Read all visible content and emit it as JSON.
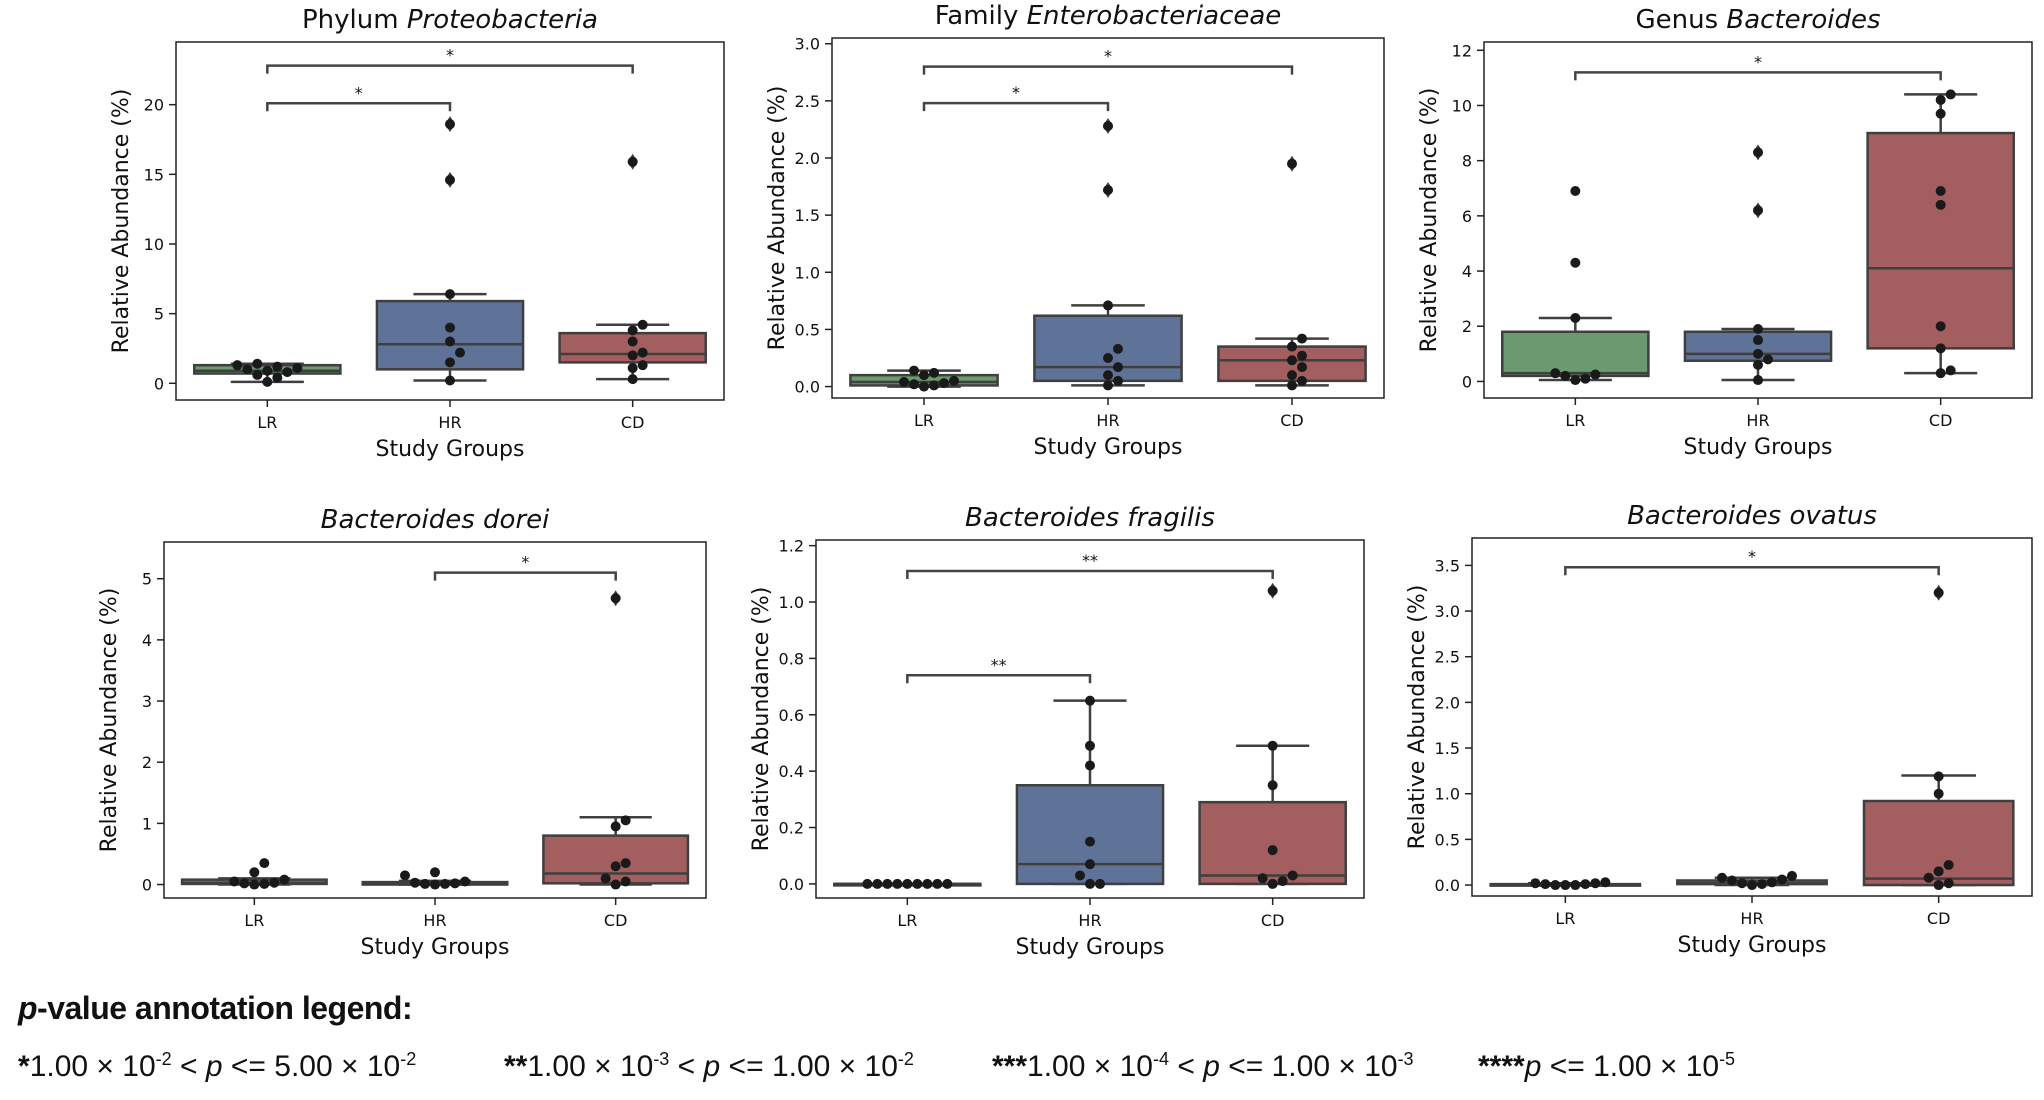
{
  "chart_data": [
    {
      "type": "box",
      "title": "Phylum Proteobacteria",
      "title_parts": [
        {
          "text": "Phylum ",
          "italic": false
        },
        {
          "text": "Proteobacteria",
          "italic": true
        }
      ],
      "xlabel": "Study Groups",
      "ylabel": "Relative Abundance (%)",
      "ylim": [
        -1.2,
        24.5
      ],
      "yticks": [
        0,
        5,
        10,
        15,
        20
      ],
      "categories": [
        "LR",
        "HR",
        "CD"
      ],
      "colors": [
        "#6a9a6e",
        "#5f7399",
        "#a35e5f"
      ],
      "boxes": [
        {
          "q1": 0.7,
          "median": 0.9,
          "q3": 1.3,
          "whislo": 0.1,
          "whishi": 1.4,
          "fliers": []
        },
        {
          "q1": 1.0,
          "median": 2.8,
          "q3": 5.9,
          "whislo": 0.2,
          "whishi": 6.4,
          "fliers": [
            14.6,
            18.6
          ]
        },
        {
          "q1": 1.5,
          "median": 2.1,
          "q3": 3.6,
          "whislo": 0.3,
          "whishi": 4.2,
          "fliers": [
            15.9
          ]
        }
      ],
      "points": [
        [
          0.1,
          0.4,
          0.6,
          0.8,
          0.9,
          1.0,
          1.1,
          1.2,
          1.3,
          1.4
        ],
        [
          0.2,
          1.5,
          2.2,
          3.0,
          4.0,
          6.4,
          14.6,
          18.6
        ],
        [
          0.3,
          1.1,
          1.3,
          2.0,
          2.2,
          3.0,
          3.8,
          4.2,
          15.9
        ]
      ],
      "annotations": [
        {
          "from": 0,
          "to": 1,
          "y": 20.1,
          "label": "*"
        },
        {
          "from": 0,
          "to": 2,
          "y": 22.8,
          "label": "*"
        }
      ]
    },
    {
      "type": "box",
      "title": "Family Enterobacteriaceae",
      "title_parts": [
        {
          "text": "Family ",
          "italic": false
        },
        {
          "text": "Enterobacteriaceae",
          "italic": true
        }
      ],
      "xlabel": "Study Groups",
      "ylabel": "Relative Abundance (%)",
      "ylim": [
        -0.1,
        3.05
      ],
      "yticks": [
        0.0,
        0.5,
        1.0,
        1.5,
        2.0,
        2.5,
        3.0
      ],
      "categories": [
        "LR",
        "HR",
        "CD"
      ],
      "colors": [
        "#6a9a6e",
        "#5f7399",
        "#a35e5f"
      ],
      "boxes": [
        {
          "q1": 0.01,
          "median": 0.04,
          "q3": 0.1,
          "whislo": 0.0,
          "whishi": 0.14,
          "fliers": []
        },
        {
          "q1": 0.05,
          "median": 0.17,
          "q3": 0.62,
          "whislo": 0.01,
          "whishi": 0.71,
          "fliers": [
            1.72,
            2.28
          ]
        },
        {
          "q1": 0.05,
          "median": 0.23,
          "q3": 0.35,
          "whislo": 0.01,
          "whishi": 0.42,
          "fliers": [
            1.95
          ]
        }
      ],
      "points": [
        [
          0.0,
          0.01,
          0.02,
          0.03,
          0.04,
          0.05,
          0.1,
          0.12,
          0.14
        ],
        [
          0.01,
          0.05,
          0.1,
          0.17,
          0.25,
          0.33,
          0.71,
          1.72,
          2.28
        ],
        [
          0.01,
          0.05,
          0.1,
          0.17,
          0.23,
          0.27,
          0.35,
          0.42,
          1.95
        ]
      ],
      "annotations": [
        {
          "from": 0,
          "to": 1,
          "y": 2.48,
          "label": "*"
        },
        {
          "from": 0,
          "to": 2,
          "y": 2.8,
          "label": "*"
        }
      ]
    },
    {
      "type": "box",
      "title": "Genus Bacteroides",
      "title_parts": [
        {
          "text": "Genus ",
          "italic": false
        },
        {
          "text": "Bacteroides",
          "italic": true
        }
      ],
      "xlabel": "Study Groups",
      "ylabel": "Relative Abundance (%)",
      "ylim": [
        -0.6,
        12.3
      ],
      "yticks": [
        0,
        2,
        4,
        6,
        8,
        10,
        12
      ],
      "categories": [
        "LR",
        "HR",
        "CD"
      ],
      "colors": [
        "#6a9a6e",
        "#5f7399",
        "#a35e5f"
      ],
      "boxes": [
        {
          "q1": 0.2,
          "median": 0.3,
          "q3": 1.8,
          "whislo": 0.05,
          "whishi": 2.3,
          "fliers": []
        },
        {
          "q1": 0.75,
          "median": 1.0,
          "q3": 1.8,
          "whislo": 0.05,
          "whishi": 1.9,
          "fliers": [
            6.2,
            8.3
          ]
        },
        {
          "q1": 1.2,
          "median": 4.1,
          "q3": 9.0,
          "whislo": 0.3,
          "whishi": 10.4,
          "fliers": []
        }
      ],
      "points": [
        [
          0.05,
          0.1,
          0.2,
          0.25,
          0.3,
          2.3,
          4.3,
          6.9
        ],
        [
          0.05,
          0.6,
          0.8,
          1.0,
          1.5,
          1.9,
          6.2,
          8.3
        ],
        [
          0.3,
          0.4,
          1.2,
          2.0,
          6.4,
          6.9,
          9.7,
          10.2,
          10.4
        ]
      ],
      "annotations": [
        {
          "from": 0,
          "to": 2,
          "y": 11.2,
          "label": "*"
        }
      ]
    },
    {
      "type": "box",
      "title": "Bacteroides dorei",
      "title_parts": [
        {
          "text": "Bacteroides dorei",
          "italic": true
        }
      ],
      "xlabel": "Study Groups",
      "ylabel": "Relative Abundance (%)",
      "ylim": [
        -0.22,
        5.6
      ],
      "yticks": [
        0,
        1,
        2,
        3,
        4,
        5
      ],
      "categories": [
        "LR",
        "HR",
        "CD"
      ],
      "colors": [
        "#6a9a6e",
        "#5f7399",
        "#a35e5f"
      ],
      "boxes": [
        {
          "q1": 0.01,
          "median": 0.03,
          "q3": 0.08,
          "whislo": 0.0,
          "whishi": 0.1,
          "fliers": []
        },
        {
          "q1": 0.0,
          "median": 0.02,
          "q3": 0.04,
          "whislo": 0.0,
          "whishi": 0.06,
          "fliers": []
        },
        {
          "q1": 0.02,
          "median": 0.18,
          "q3": 0.8,
          "whislo": 0.0,
          "whishi": 1.1,
          "fliers": [
            4.68
          ]
        }
      ],
      "points": [
        [
          0.0,
          0.01,
          0.02,
          0.03,
          0.05,
          0.08,
          0.2,
          0.35
        ],
        [
          0.0,
          0.01,
          0.01,
          0.02,
          0.03,
          0.05,
          0.15,
          0.2
        ],
        [
          0.0,
          0.05,
          0.1,
          0.3,
          0.35,
          0.95,
          1.05,
          4.68
        ]
      ],
      "annotations": [
        {
          "from": 1,
          "to": 2,
          "y": 5.1,
          "label": "*"
        }
      ]
    },
    {
      "type": "box",
      "title": "Bacteroides fragilis",
      "title_parts": [
        {
          "text": "Bacteroides fragilis",
          "italic": true
        }
      ],
      "xlabel": "Study Groups",
      "ylabel": "Relative Abundance (%)",
      "ylim": [
        -0.05,
        1.22
      ],
      "yticks": [
        0.0,
        0.2,
        0.4,
        0.6,
        0.8,
        1.0,
        1.2
      ],
      "categories": [
        "LR",
        "HR",
        "CD"
      ],
      "colors": [
        "#6a9a6e",
        "#5f7399",
        "#a35e5f"
      ],
      "boxes": [
        {
          "q1": 0.0,
          "median": 0.0,
          "q3": 0.0,
          "whislo": 0.0,
          "whishi": 0.0,
          "fliers": []
        },
        {
          "q1": 0.0,
          "median": 0.07,
          "q3": 0.35,
          "whislo": 0.0,
          "whishi": 0.65,
          "fliers": []
        },
        {
          "q1": 0.0,
          "median": 0.03,
          "q3": 0.29,
          "whislo": 0.0,
          "whishi": 0.49,
          "fliers": [
            1.04
          ]
        }
      ],
      "points": [
        [
          0.0,
          0.0,
          0.0,
          0.0,
          0.0,
          0.0,
          0.0,
          0.0,
          0.0
        ],
        [
          0.0,
          0.0,
          0.03,
          0.07,
          0.15,
          0.42,
          0.49,
          0.65
        ],
        [
          0.0,
          0.01,
          0.02,
          0.03,
          0.12,
          0.35,
          0.49,
          1.04
        ]
      ],
      "annotations": [
        {
          "from": 0,
          "to": 1,
          "y": 0.74,
          "label": "**"
        },
        {
          "from": 0,
          "to": 2,
          "y": 1.11,
          "label": "**"
        }
      ]
    },
    {
      "type": "box",
      "title": "Bacteroides ovatus",
      "title_parts": [
        {
          "text": "Bacteroides ovatus",
          "italic": true
        }
      ],
      "xlabel": "Study Groups",
      "ylabel": "Relative Abundance (%)",
      "ylim": [
        -0.12,
        3.8
      ],
      "yticks": [
        0.0,
        0.5,
        1.0,
        1.5,
        2.0,
        2.5,
        3.0,
        3.5
      ],
      "categories": [
        "LR",
        "HR",
        "CD"
      ],
      "colors": [
        "#6a9a6e",
        "#5f7399",
        "#a35e5f"
      ],
      "boxes": [
        {
          "q1": 0.0,
          "median": 0.005,
          "q3": 0.01,
          "whislo": 0.0,
          "whishi": 0.02,
          "fliers": []
        },
        {
          "q1": 0.01,
          "median": 0.02,
          "q3": 0.05,
          "whislo": 0.0,
          "whishi": 0.08,
          "fliers": []
        },
        {
          "q1": 0.0,
          "median": 0.07,
          "q3": 0.92,
          "whislo": 0.0,
          "whishi": 1.2,
          "fliers": [
            3.2
          ]
        }
      ],
      "points": [
        [
          0.0,
          0.0,
          0.0,
          0.01,
          0.01,
          0.02,
          0.02,
          0.03
        ],
        [
          0.0,
          0.01,
          0.02,
          0.03,
          0.05,
          0.06,
          0.08,
          0.1
        ],
        [
          0.0,
          0.02,
          0.08,
          0.15,
          0.22,
          1.0,
          1.19,
          3.2
        ]
      ],
      "annotations": [
        {
          "from": 0,
          "to": 2,
          "y": 3.48,
          "label": "*"
        }
      ]
    }
  ],
  "legend": {
    "title_italic": "p",
    "title_rest": "-value annotation legend:",
    "items": [
      {
        "stars": "*",
        "lo_mant": "1.00 × 10",
        "lo_exp": "-2",
        "op1": " < ",
        "p": "p",
        "op2": " <= ",
        "hi_mant": "5.00 × 10",
        "hi_exp": "-2"
      },
      {
        "stars": "**",
        "lo_mant": "1.00 × 10",
        "lo_exp": "-3",
        "op1": " < ",
        "p": "p",
        "op2": " <= ",
        "hi_mant": "1.00 × 10",
        "hi_exp": "-2"
      },
      {
        "stars": "***",
        "lo_mant": "1.00 × 10",
        "lo_exp": "-4",
        "op1": " < ",
        "p": "p",
        "op2": " <= ",
        "hi_mant": "1.00 × 10",
        "hi_exp": "-3"
      },
      {
        "stars": "****",
        "p": "p",
        "op2": " <= ",
        "hi_mant": "1.00 × 10",
        "hi_exp": "-5"
      }
    ]
  }
}
